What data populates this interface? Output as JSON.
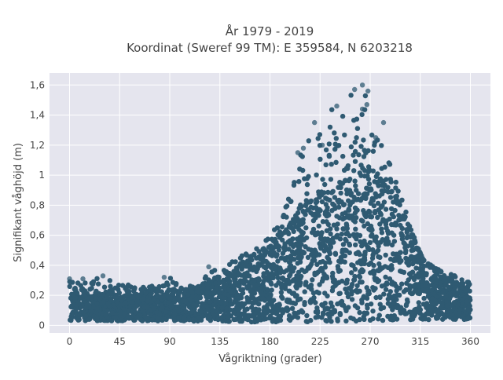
{
  "chart_data": {
    "type": "scatter",
    "title_lines": [
      "År 1979 - 2019",
      "Koordinat (Sweref 99 TM): E 359584, N 6203218"
    ],
    "xlabel": "Vågriktning (grader)",
    "ylabel": "Signifikant våghöjd (m)",
    "xlim": [
      -18,
      378
    ],
    "ylim": [
      -0.05,
      1.68
    ],
    "x_ticks": [
      0,
      45,
      90,
      135,
      180,
      225,
      270,
      315,
      360
    ],
    "x_tick_labels": [
      "0",
      "45",
      "90",
      "135",
      "180",
      "225",
      "270",
      "315",
      "360"
    ],
    "y_ticks": [
      0,
      0.2,
      0.4,
      0.6,
      0.8,
      1.0,
      1.2,
      1.4,
      1.6
    ],
    "y_tick_labels": [
      "0",
      "0,2",
      "0,4",
      "0,6",
      "0,8",
      "1",
      "1,2",
      "1,4",
      "1,6"
    ],
    "grid": true,
    "legend": "none",
    "marker_color": "#2f5a72",
    "background_color": "#e5e5ee",
    "grid_color": "#ffffff",
    "x_range": [
      0,
      360
    ],
    "upper_envelope": [
      {
        "x": 0,
        "y": 0.3
      },
      {
        "x": 20,
        "y": 0.3
      },
      {
        "x": 30,
        "y": 0.33
      },
      {
        "x": 45,
        "y": 0.28
      },
      {
        "x": 60,
        "y": 0.26
      },
      {
        "x": 80,
        "y": 0.27
      },
      {
        "x": 90,
        "y": 0.32
      },
      {
        "x": 100,
        "y": 0.25
      },
      {
        "x": 120,
        "y": 0.29
      },
      {
        "x": 125,
        "y": 0.39
      },
      {
        "x": 135,
        "y": 0.35
      },
      {
        "x": 150,
        "y": 0.45
      },
      {
        "x": 165,
        "y": 0.5
      },
      {
        "x": 180,
        "y": 0.6
      },
      {
        "x": 195,
        "y": 0.8
      },
      {
        "x": 210,
        "y": 1.2
      },
      {
        "x": 225,
        "y": 1.35
      },
      {
        "x": 235,
        "y": 1.45
      },
      {
        "x": 250,
        "y": 1.55
      },
      {
        "x": 262,
        "y": 1.6
      },
      {
        "x": 270,
        "y": 1.5
      },
      {
        "x": 280,
        "y": 1.2
      },
      {
        "x": 295,
        "y": 0.95
      },
      {
        "x": 315,
        "y": 0.45
      },
      {
        "x": 330,
        "y": 0.38
      },
      {
        "x": 345,
        "y": 0.35
      },
      {
        "x": 360,
        "y": 0.3
      }
    ],
    "dense_core": [
      {
        "x": 0,
        "y": 0.2
      },
      {
        "x": 45,
        "y": 0.2
      },
      {
        "x": 90,
        "y": 0.2
      },
      {
        "x": 135,
        "y": 0.28
      },
      {
        "x": 165,
        "y": 0.4
      },
      {
        "x": 180,
        "y": 0.5
      },
      {
        "x": 195,
        "y": 0.65
      },
      {
        "x": 210,
        "y": 0.8
      },
      {
        "x": 225,
        "y": 0.85
      },
      {
        "x": 245,
        "y": 0.95
      },
      {
        "x": 262,
        "y": 1.05
      },
      {
        "x": 275,
        "y": 1.0
      },
      {
        "x": 290,
        "y": 0.85
      },
      {
        "x": 305,
        "y": 0.65
      },
      {
        "x": 320,
        "y": 0.4
      },
      {
        "x": 340,
        "y": 0.3
      },
      {
        "x": 360,
        "y": 0.22
      }
    ],
    "lower_bound": [
      {
        "x": 0,
        "y": 0.03
      },
      {
        "x": 90,
        "y": 0.03
      },
      {
        "x": 180,
        "y": 0.02
      },
      {
        "x": 270,
        "y": 0.03
      },
      {
        "x": 360,
        "y": 0.04
      }
    ],
    "outliers": [
      {
        "x": 263,
        "y": 1.6
      },
      {
        "x": 256,
        "y": 1.57
      },
      {
        "x": 268,
        "y": 1.56
      },
      {
        "x": 267,
        "y": 1.47
      },
      {
        "x": 240,
        "y": 1.46
      },
      {
        "x": 263,
        "y": 1.44
      },
      {
        "x": 220,
        "y": 1.35
      },
      {
        "x": 210,
        "y": 1.18
      },
      {
        "x": 205,
        "y": 1.15
      },
      {
        "x": 227,
        "y": 1.2
      },
      {
        "x": 282,
        "y": 1.35
      },
      {
        "x": 275,
        "y": 1.25
      },
      {
        "x": 125,
        "y": 0.39
      },
      {
        "x": 30,
        "y": 0.33
      },
      {
        "x": 85,
        "y": 0.32
      },
      {
        "x": 0,
        "y": 0.31
      },
      {
        "x": 12,
        "y": 0.31
      }
    ]
  }
}
